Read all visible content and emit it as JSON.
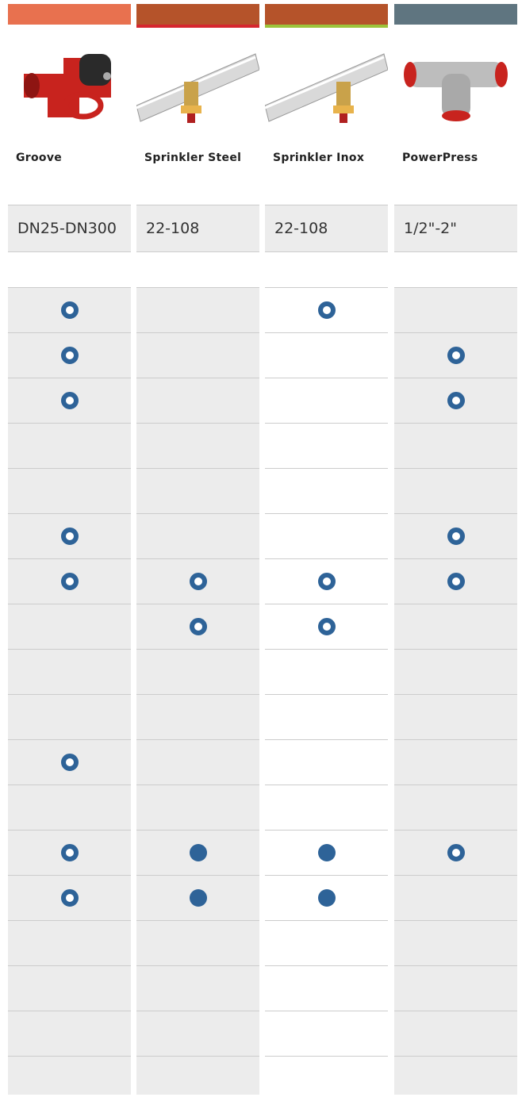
{
  "columns": [
    {
      "name": "Groove",
      "spec": "DN25-DN300"
    },
    {
      "name": "Sprinkler Steel",
      "spec": "22-108"
    },
    {
      "name": "Sprinkler Inox",
      "spec": "22-108"
    },
    {
      "name": "PowerPress",
      "spec": "1/2\"-2\""
    }
  ]
}
